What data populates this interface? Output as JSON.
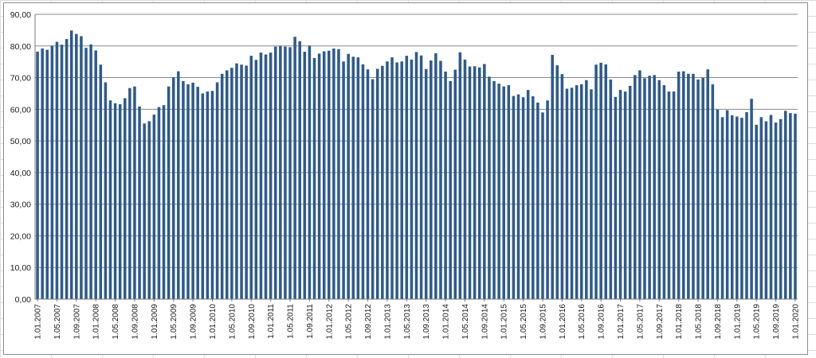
{
  "chart_data": {
    "type": "bar",
    "title": "",
    "xlabel": "",
    "ylabel": "",
    "ylim": [
      0,
      90
    ],
    "yticks": [
      "0,00",
      "10,00",
      "20,00",
      "30,00",
      "40,00",
      "50,00",
      "60,00",
      "70,00",
      "80,00",
      "90,00"
    ],
    "xtick_labels": [
      "1.01.2007",
      "1.05.2007",
      "1.09.2007",
      "1.01.2008",
      "1.05.2008",
      "1.09.2008",
      "1.01.2009",
      "1.05.2009",
      "1.09.2009",
      "1.01.2010",
      "1.05.2010",
      "1.09.2010",
      "1.01.2011",
      "1.05.2011",
      "1.09.2011",
      "1.01.2012",
      "1.05.2012",
      "1.09.2012",
      "1.01.2013",
      "1.05.2013",
      "1.09.2013",
      "1.01.2014",
      "1.05.2014",
      "1.09.2014",
      "1.01.2015",
      "1.05.2015",
      "1.09.2015",
      "1.01.2016",
      "1.05.2016",
      "1.09.2016",
      "1.01.2017",
      "1.05.2017",
      "1.09.2017",
      "1.01.2018",
      "1.05.2018",
      "1.09.2018",
      "1.01.2019",
      "1.05.2019",
      "1.09.2019",
      "1.01.2020"
    ],
    "grid": true,
    "bar_color": "#2e5a8e",
    "series": [
      {
        "values": [
          78.2,
          79.2,
          78.8,
          80.1,
          81.3,
          80.4,
          82.2,
          84.9,
          83.8,
          83.1,
          79.4,
          80.5,
          78.6,
          74.1,
          68.5,
          62.8,
          61.9,
          61.6,
          63.5,
          66.7,
          67.2,
          60.9,
          55.5,
          56.2,
          58.3,
          60.7,
          61.3,
          67.2,
          70.1,
          72.0,
          68.9,
          67.9,
          68.4,
          67.1,
          65.0,
          65.6,
          65.8,
          68.5,
          71.2,
          72.3,
          73.1,
          74.5,
          74.1,
          73.8,
          76.9,
          75.6,
          77.9,
          77.3,
          77.9,
          79.8,
          80.0,
          79.8,
          79.6,
          82.9,
          81.5,
          78.2,
          80.1,
          76.2,
          77.6,
          78.3,
          78.5,
          79.2,
          79.0,
          75.1,
          77.5,
          76.6,
          76.4,
          74.2,
          72.6,
          69.5,
          72.8,
          73.7,
          75.1,
          76.4,
          74.8,
          75.1,
          76.9,
          75.7,
          78.1,
          77.0,
          72.7,
          75.4,
          77.7,
          75.3,
          71.9,
          68.9,
          72.5,
          78.0,
          75.7,
          73.5,
          73.6,
          73.2,
          74.3,
          70.3,
          68.9,
          68.1,
          67.2,
          67.6,
          64.2,
          64.7,
          63.8,
          66.1,
          64.1,
          62.1,
          59.0,
          62.8,
          77.2,
          73.9,
          71.1,
          66.5,
          66.8,
          67.6,
          67.9,
          69.2,
          66.3,
          74.1,
          74.7,
          74.2,
          69.4,
          63.9,
          66.1,
          65.6,
          67.4,
          70.8,
          72.3,
          69.8,
          70.6,
          70.8,
          69.2,
          67.6,
          65.6,
          65.6,
          71.9,
          72.0,
          71.2,
          71.2,
          69.4,
          69.9,
          72.6,
          67.9,
          59.9,
          57.5,
          59.7,
          58.1,
          57.7,
          57.3,
          59.1,
          63.3,
          55.1,
          57.5,
          56.2,
          58.2,
          55.8,
          56.9,
          59.5,
          58.8,
          58.6
        ]
      }
    ]
  }
}
